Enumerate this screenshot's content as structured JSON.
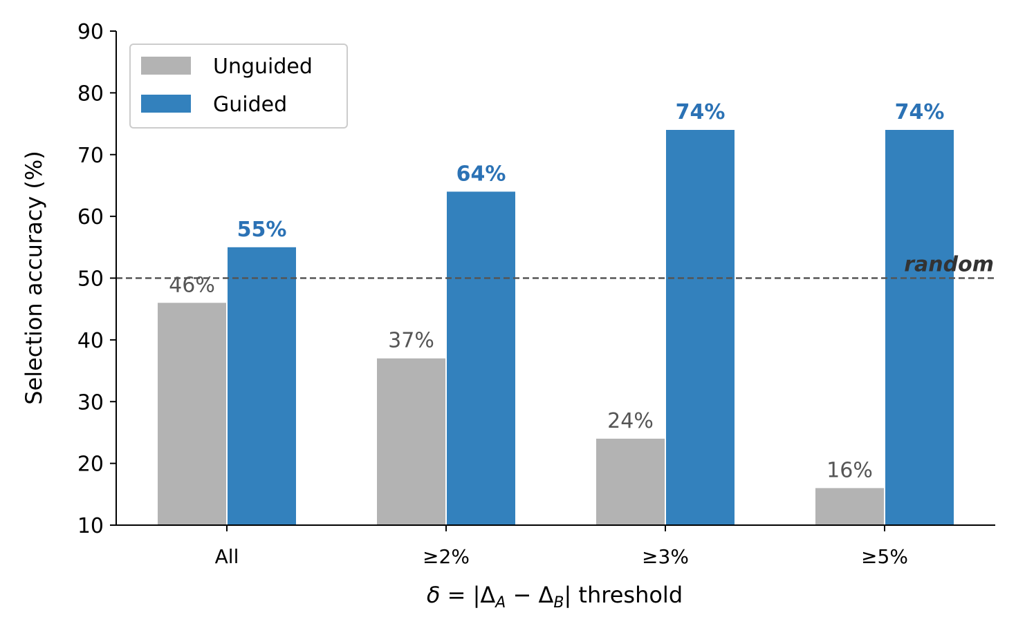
{
  "chart_data": {
    "type": "bar",
    "categories": [
      "All",
      "≥2%",
      "≥3%",
      "≥5%"
    ],
    "series": [
      {
        "name": "Unguided",
        "values": [
          46,
          37,
          24,
          16
        ],
        "color": "#b3b3b3",
        "labels": [
          "46%",
          "37%",
          "24%",
          "16%"
        ]
      },
      {
        "name": "Guided",
        "values": [
          55,
          64,
          74,
          74
        ],
        "color": "#3381bd",
        "labels": [
          "55%",
          "64%",
          "74%",
          "74%"
        ]
      }
    ],
    "ylabel": "Selection accuracy (%)",
    "xlabel": "δ = |Δ_A − Δ_B| threshold",
    "ylim": [
      10,
      90
    ],
    "yticks": [
      "10",
      "20",
      "30",
      "40",
      "50",
      "60",
      "70",
      "80",
      "90"
    ],
    "reference_line": {
      "value": 50,
      "label": "random",
      "color": "#555555",
      "style": "dashed"
    },
    "legend": {
      "placement": "top-left"
    },
    "grid": false
  }
}
